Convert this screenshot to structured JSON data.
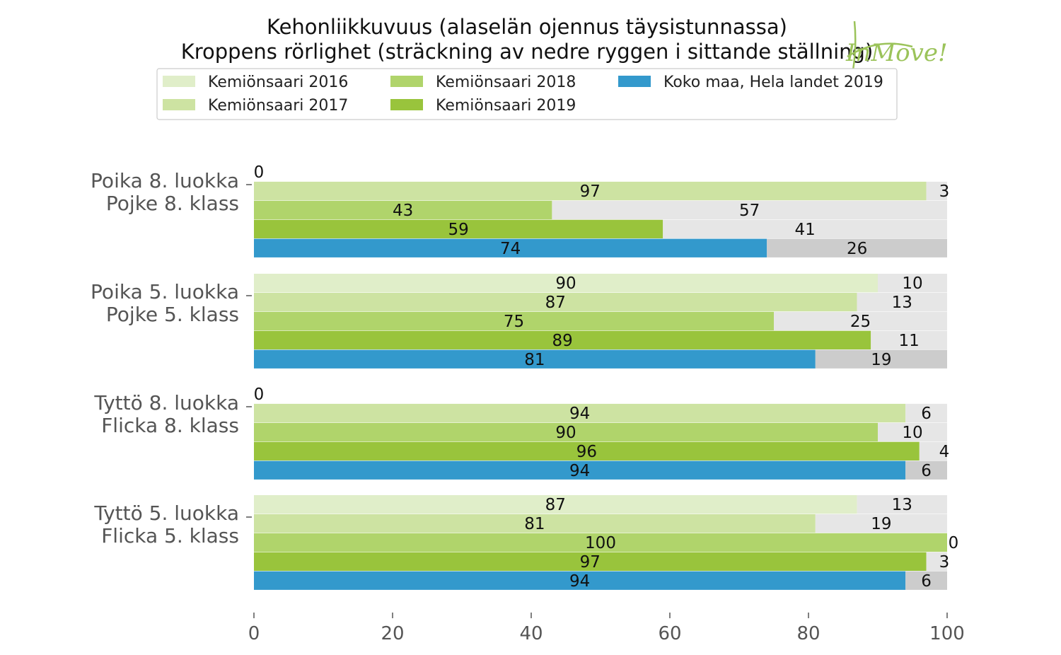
{
  "chart_data": {
    "type": "bar",
    "orientation": "horizontal",
    "stacked": true,
    "title": "Kehonliikkuvuus (alaselän ojennus täysistunnassa)",
    "subtitle": "Kroppens rörlighet (sträckning av nedre ryggen i sittande ställning)",
    "xlabel": "",
    "ylabel": "",
    "xlim": [
      0,
      100
    ],
    "x_ticks": [
      0,
      20,
      40,
      60,
      80,
      100
    ],
    "grid": false,
    "legend_position": "top",
    "legend": [
      {
        "label": "Kemiönsaari  2016",
        "color": "#e0eec9"
      },
      {
        "label": "Kemiönsaari  2017",
        "color": "#cde3a2"
      },
      {
        "label": "Kemiönsaari  2018",
        "color": "#b0d46b"
      },
      {
        "label": "Kemiönsaari  2019",
        "color": "#99c43c"
      },
      {
        "label": "Koko maa, Hela landet 2019",
        "color": "#3399cc"
      }
    ],
    "remainder_colors": {
      "kemionsaari": "#e6e6e6",
      "national": "#cccccc"
    },
    "groups": [
      {
        "label_line1": "Poika 8. luokka",
        "label_line2": "Pojke 8. klass",
        "bars": [
          {
            "series": "Kemiönsaari  2016",
            "value": null,
            "missing_label": "0"
          },
          {
            "series": "Kemiönsaari  2017",
            "value": 97,
            "value_label": "97",
            "rest_label": "3"
          },
          {
            "series": "Kemiönsaari  2018",
            "value": 43,
            "value_label": "43",
            "rest_label": "57"
          },
          {
            "series": "Kemiönsaari  2019",
            "value": 59,
            "value_label": "59",
            "rest_label": "41"
          },
          {
            "series": "Koko maa, Hela landet 2019",
            "value": 74,
            "value_label": "74",
            "rest_label": "26"
          }
        ]
      },
      {
        "label_line1": "Poika 5. luokka",
        "label_line2": "Pojke 5. klass",
        "bars": [
          {
            "series": "Kemiönsaari  2016",
            "value": 90,
            "value_label": "90",
            "rest_label": "10"
          },
          {
            "series": "Kemiönsaari  2017",
            "value": 87,
            "value_label": "87",
            "rest_label": "13"
          },
          {
            "series": "Kemiönsaari  2018",
            "value": 75,
            "value_label": "75",
            "rest_label": "25"
          },
          {
            "series": "Kemiönsaari  2019",
            "value": 89,
            "value_label": "89",
            "rest_label": "11"
          },
          {
            "series": "Koko maa, Hela landet 2019",
            "value": 81,
            "value_label": "81",
            "rest_label": "19"
          }
        ]
      },
      {
        "label_line1": "Tyttö 8. luokka",
        "label_line2": "Flicka 8. klass",
        "bars": [
          {
            "series": "Kemiönsaari  2016",
            "value": null,
            "missing_label": "0"
          },
          {
            "series": "Kemiönsaari  2017",
            "value": 94,
            "value_label": "94",
            "rest_label": "6"
          },
          {
            "series": "Kemiönsaari  2018",
            "value": 90,
            "value_label": "90",
            "rest_label": "10"
          },
          {
            "series": "Kemiönsaari  2019",
            "value": 96,
            "value_label": "96",
            "rest_label": "4"
          },
          {
            "series": "Koko maa, Hela landet 2019",
            "value": 94,
            "value_label": "94",
            "rest_label": "6"
          }
        ]
      },
      {
        "label_line1": "Tyttö 5. luokka",
        "label_line2": "Flicka 5. klass",
        "bars": [
          {
            "series": "Kemiönsaari  2016",
            "value": 87,
            "value_label": "87",
            "rest_label": "13"
          },
          {
            "series": "Kemiönsaari  2017",
            "value": 81,
            "value_label": "81",
            "rest_label": "19"
          },
          {
            "series": "Kemiönsaari  2018",
            "value": 100,
            "value_label": "100",
            "rest_label": "0"
          },
          {
            "series": "Kemiönsaari  2019",
            "value": 97,
            "value_label": "97",
            "rest_label": "3"
          },
          {
            "series": "Koko maa, Hela landet 2019",
            "value": 94,
            "value_label": "94",
            "rest_label": "6"
          }
        ]
      }
    ]
  },
  "logo": {
    "text": "InMove!"
  }
}
